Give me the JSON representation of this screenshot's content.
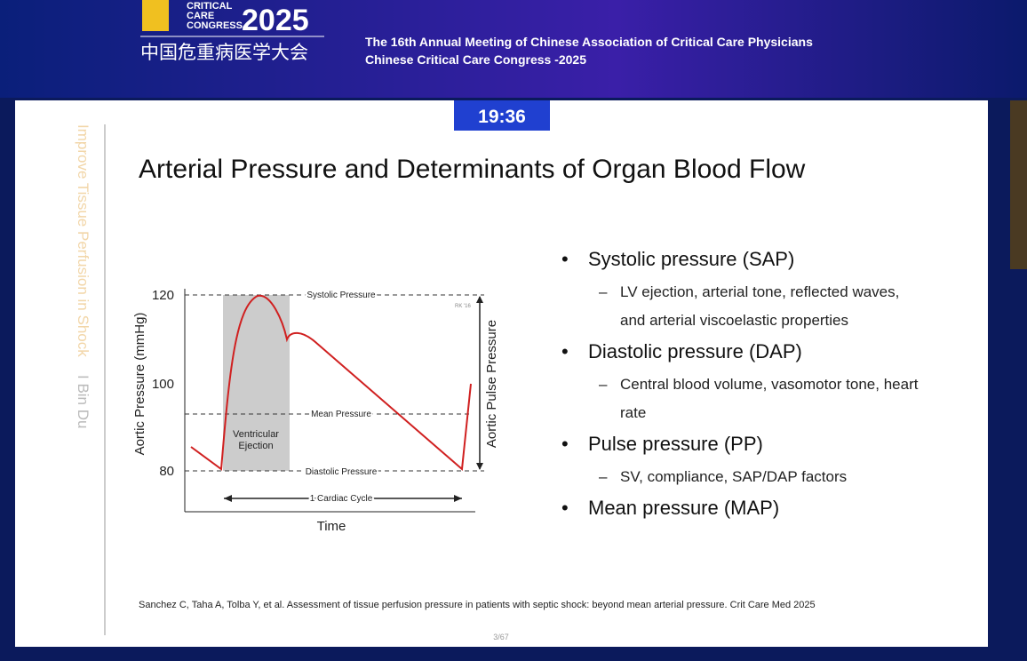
{
  "header": {
    "logo_lines": [
      "CRITICAL",
      "CARE",
      "CONGRESS"
    ],
    "logo_year": "2025",
    "chinese_name": "中国危重病医学大会",
    "meeting": "The 16th Annual Meeting of Chinese Association of Critical Care Physicians",
    "congress": "Chinese Critical Care Congress -2025"
  },
  "timer": "19:36",
  "sidebar": {
    "topic": "Improve Tissue Perfusion in Shock",
    "speaker": "I Bin Du"
  },
  "slide": {
    "title": "Arterial Pressure and Determinants of Organ Blood Flow",
    "bullets": [
      {
        "text": "Systolic pressure (SAP)",
        "subs": [
          "LV ejection, arterial tone, reflected waves, and arterial viscoelastic properties"
        ]
      },
      {
        "text": "Diastolic pressure (DAP)",
        "subs": [
          "Central blood volume, vasomotor tone, heart rate"
        ]
      },
      {
        "text": "Pulse pressure (PP)",
        "subs": [
          "SV, compliance, SAP/DAP factors"
        ]
      },
      {
        "text": "Mean pressure (MAP)",
        "subs": []
      }
    ],
    "citation": "Sanchez C, Taha A, Tolba Y, et al. Assessment of tissue perfusion pressure in patients with septic shock: beyond mean arterial pressure. Crit Care Med 2025",
    "page": "3/67"
  },
  "figure": {
    "y_label": "Aortic Pressure (mmHg)",
    "yticks": [
      "120",
      "100",
      "80"
    ],
    "x_label": "Time",
    "systolic": "Systolic Pressure",
    "mean": "Mean Pressure",
    "diastolic": "Diastolic Pressure",
    "ejection": [
      "Ventricular",
      "Ejection"
    ],
    "cycle": "1 Cardiac Cycle",
    "pulse": "Aortic Pulse Pressure",
    "credit": "RK '16"
  }
}
